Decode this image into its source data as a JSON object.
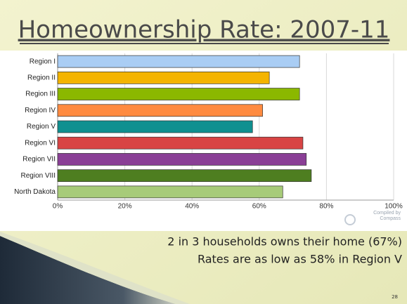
{
  "chart_data": {
    "type": "bar",
    "orientation": "horizontal",
    "title": "Homeownership Rate: 2007-11",
    "categories": [
      "Region I",
      "Region II",
      "Region III",
      "Region IV",
      "Region V",
      "Region VI",
      "Region VII",
      "Region VIII",
      "North Dakota"
    ],
    "values": [
      72,
      63,
      72,
      61,
      58,
      73,
      74,
      75.5,
      67
    ],
    "colors": [
      "#a9cdf4",
      "#f4b400",
      "#8bb800",
      "#ff8b40",
      "#0f9090",
      "#d84444",
      "#8a3f96",
      "#4e7e20",
      "#a7cb79"
    ],
    "xlim": [
      0,
      100
    ],
    "xticks": [
      {
        "value": 0,
        "label": "0%"
      },
      {
        "value": 20,
        "label": "20%"
      },
      {
        "value": 40,
        "label": "40%"
      },
      {
        "value": 60,
        "label": "60%"
      },
      {
        "value": 80,
        "label": "80%"
      },
      {
        "value": 100,
        "label": "100%"
      }
    ],
    "grid": true,
    "source": [
      "Compiled by",
      "Compass"
    ],
    "notes": [
      "2 in 3 households owns their home (67%)",
      "Rates are as low as 58% in Region V"
    ]
  },
  "slide": {
    "number": 28
  }
}
